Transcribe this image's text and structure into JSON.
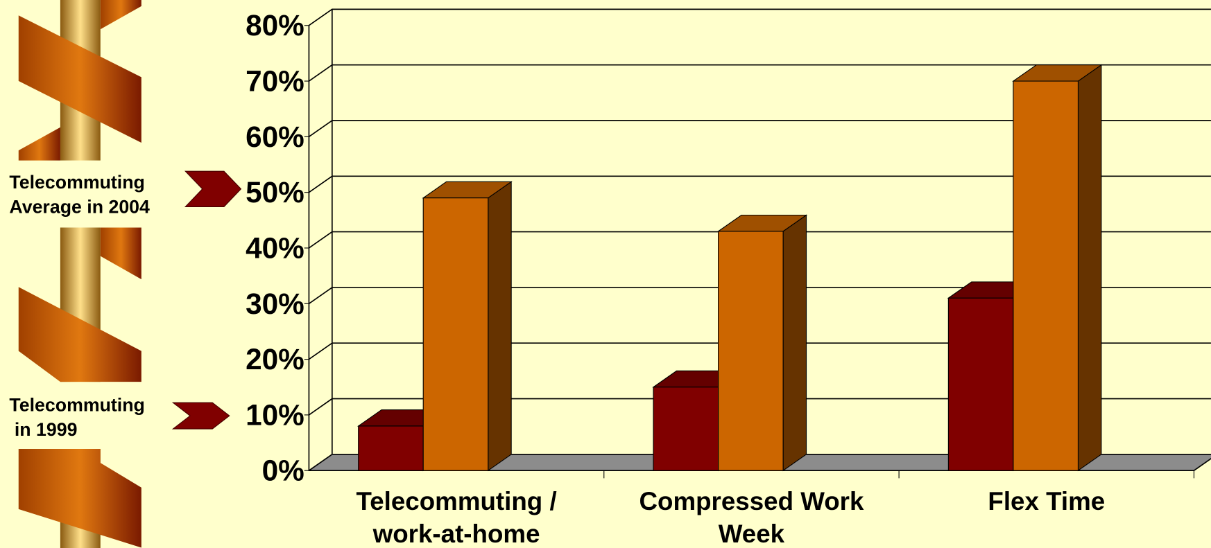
{
  "chart_data": {
    "type": "bar3d",
    "categories": [
      [
        "Telecommuting /",
        "work-at-home"
      ],
      [
        "Compressed Work",
        "Week"
      ],
      [
        "Flex Time"
      ]
    ],
    "series": [
      {
        "color": "#800000",
        "values": [
          8,
          15,
          31
        ]
      },
      {
        "color": "#cc6600",
        "values": [
          49,
          43,
          70
        ]
      }
    ],
    "ylim": [
      0,
      80
    ],
    "yticks": [
      {
        "value": 0,
        "label": "0%"
      },
      {
        "value": 10,
        "label": "10%"
      },
      {
        "value": 20,
        "label": "20%"
      },
      {
        "value": 30,
        "label": "30%"
      },
      {
        "value": 40,
        "label": "40%"
      },
      {
        "value": 50,
        "label": "50%"
      },
      {
        "value": 60,
        "label": "60%"
      },
      {
        "value": 70,
        "label": "70%"
      },
      {
        "value": 80,
        "label": "80%"
      }
    ],
    "grid": true,
    "annotations": [
      {
        "lines": [
          "Telecommuting",
          "Average in 2004"
        ],
        "value": 50
      },
      {
        "lines": [
          "Telecommuting",
          " in 1999"
        ],
        "value": 10
      }
    ]
  }
}
